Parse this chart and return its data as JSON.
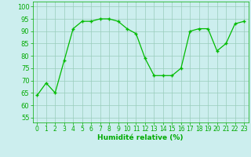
{
  "x": [
    0,
    1,
    2,
    3,
    4,
    5,
    6,
    7,
    8,
    9,
    10,
    11,
    12,
    13,
    14,
    15,
    16,
    17,
    18,
    19,
    20,
    21,
    22,
    23
  ],
  "y": [
    64,
    69,
    65,
    78,
    91,
    94,
    94,
    95,
    95,
    94,
    91,
    89,
    79,
    72,
    72,
    72,
    75,
    90,
    91,
    91,
    82,
    85,
    93,
    94
  ],
  "line_color": "#00bb00",
  "marker": "+",
  "bg_color": "#cceeee",
  "grid_color": "#99ccbb",
  "xlabel": "Humidité relative (%)",
  "xlabel_color": "#00aa00",
  "tick_color": "#00aa00",
  "ylim": [
    53,
    102
  ],
  "yticks": [
    55,
    60,
    65,
    70,
    75,
    80,
    85,
    90,
    95,
    100
  ],
  "xlim": [
    -0.5,
    23.5
  ],
  "label_fontsize": 5.5,
  "xlabel_fontsize": 6.5,
  "ytick_fontsize": 6,
  "markersize": 3.5,
  "linewidth": 0.9
}
